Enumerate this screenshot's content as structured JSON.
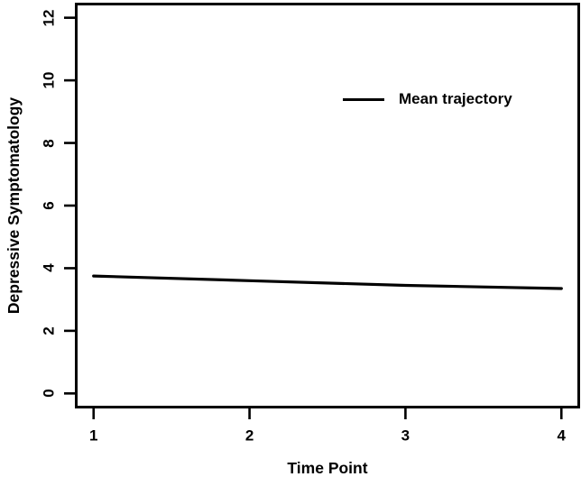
{
  "figure": {
    "background": "#ffffff",
    "foreground": "#000000"
  },
  "chart_data": {
    "type": "line",
    "title": "",
    "xlabel": "Time Point",
    "ylabel": "Depressive Symptomatology",
    "x": [
      1,
      2,
      3,
      4
    ],
    "series": [
      {
        "name": "Mean trajectory",
        "values": [
          3.75,
          3.6,
          3.45,
          3.35
        ],
        "color": "#000000"
      }
    ],
    "xlim": [
      1,
      4
    ],
    "ylim": [
      0,
      12
    ],
    "xticks": [
      1,
      2,
      3,
      4
    ],
    "xtick_labels": [
      "1",
      "2",
      "3",
      "4"
    ],
    "yticks": [
      0,
      2,
      4,
      6,
      8,
      10,
      12
    ],
    "ytick_labels": [
      "0",
      "2",
      "4",
      "6",
      "8",
      "10",
      "12"
    ],
    "grid": false,
    "legend_position": "upper-right-inside",
    "legend_entries": [
      "Mean trajectory"
    ]
  }
}
